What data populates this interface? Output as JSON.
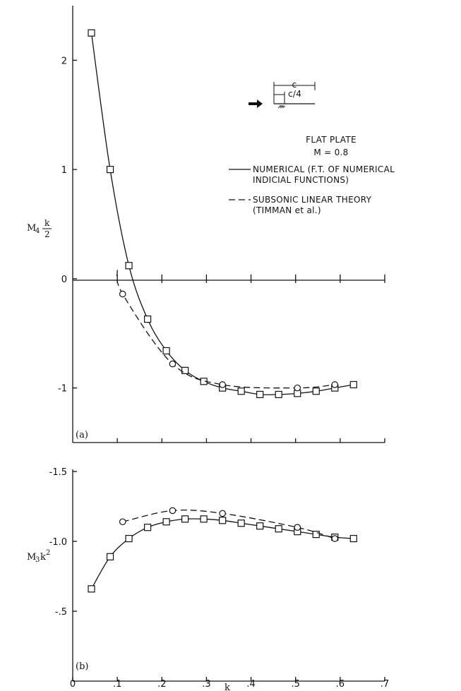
{
  "legend": {
    "title": "FLAT PLATE",
    "mach": "M = 0.8",
    "numerical_line1": "NUMERICAL (F.T. OF NUMERICAL",
    "numerical_line2": "INDICIAL FUNCTIONS)",
    "theory_line1": "SUBSONIC LINEAR THEORY",
    "theory_line2": "(TIMMAN et al.)",
    "sketch_c": "c",
    "sketch_c4": "c/4"
  },
  "chart_data": [
    {
      "type": "line",
      "panel_label": "(a)",
      "ylabel": "M4 k/2",
      "ylabel_parts": {
        "base": "M",
        "sub": "4",
        "frac_num": "k",
        "frac_den": "2"
      },
      "xlim": [
        0.0,
        0.7
      ],
      "ylim": [
        -1.5,
        2.5
      ],
      "y_tick_labels": [
        {
          "value": 2,
          "text": "2"
        },
        {
          "value": 1,
          "text": "1"
        },
        {
          "value": 0,
          "text": "0"
        },
        {
          "value": -1,
          "text": "-1"
        }
      ],
      "series": [
        {
          "name": "NUMERICAL (F.T. OF NUMERICAL INDICIAL FUNCTIONS)",
          "style": "solid",
          "marker": "square",
          "x": [
            0.042,
            0.084,
            0.126,
            0.168,
            0.21,
            0.252,
            0.294,
            0.336,
            0.378,
            0.42,
            0.462,
            0.504,
            0.546,
            0.588,
            0.63
          ],
          "values": [
            2.25,
            1.0,
            0.12,
            -0.37,
            -0.66,
            -0.84,
            -0.94,
            -1.0,
            -1.03,
            -1.06,
            -1.06,
            -1.05,
            -1.03,
            -1.0,
            -0.97
          ]
        },
        {
          "name": "SUBSONIC LINEAR THEORY (TIMMAN et al.)",
          "style": "dashed",
          "marker": "circle",
          "x": [
            0.112,
            0.224,
            0.336,
            0.504,
            0.588
          ],
          "values": [
            -0.14,
            -0.78,
            -0.97,
            -1.0,
            -0.97
          ]
        }
      ]
    },
    {
      "type": "line",
      "panel_label": "(b)",
      "xlabel": "k",
      "ylabel": "M3k2",
      "ylabel_parts": {
        "base": "M",
        "sub": "3",
        "mid": "k",
        "sup": "2"
      },
      "xlim": [
        0.0,
        0.7
      ],
      "ylim": [
        -1.5,
        0.0
      ],
      "y_reversed": true,
      "x_tick_labels": [
        {
          "value": 0,
          "text": "0"
        },
        {
          "value": 0.1,
          "text": ".1"
        },
        {
          "value": 0.2,
          "text": ".2"
        },
        {
          "value": 0.3,
          "text": ".3"
        },
        {
          "value": 0.4,
          "text": ".4"
        },
        {
          "value": 0.5,
          "text": ".5"
        },
        {
          "value": 0.6,
          "text": ".6"
        },
        {
          "value": 0.7,
          "text": ".7"
        }
      ],
      "y_tick_labels": [
        {
          "value": -1.5,
          "text": "-1.5"
        },
        {
          "value": -1.0,
          "text": "-1.0"
        },
        {
          "value": -0.5,
          "text": "-.5"
        }
      ],
      "series": [
        {
          "name": "NUMERICAL (F.T. OF NUMERICAL INDICIAL FUNCTIONS)",
          "style": "solid",
          "marker": "square",
          "x": [
            0.042,
            0.084,
            0.126,
            0.168,
            0.21,
            0.252,
            0.294,
            0.336,
            0.378,
            0.42,
            0.462,
            0.504,
            0.546,
            0.588,
            0.63
          ],
          "values": [
            -0.66,
            -0.89,
            -1.02,
            -1.1,
            -1.14,
            -1.16,
            -1.16,
            -1.15,
            -1.13,
            -1.11,
            -1.09,
            -1.07,
            -1.05,
            -1.03,
            -1.02
          ]
        },
        {
          "name": "SUBSONIC LINEAR THEORY (TIMMAN et al.)",
          "style": "dashed",
          "marker": "circle",
          "x": [
            0.112,
            0.224,
            0.336,
            0.504,
            0.588
          ],
          "values": [
            -1.14,
            -1.22,
            -1.2,
            -1.1,
            -1.02
          ]
        }
      ]
    }
  ]
}
